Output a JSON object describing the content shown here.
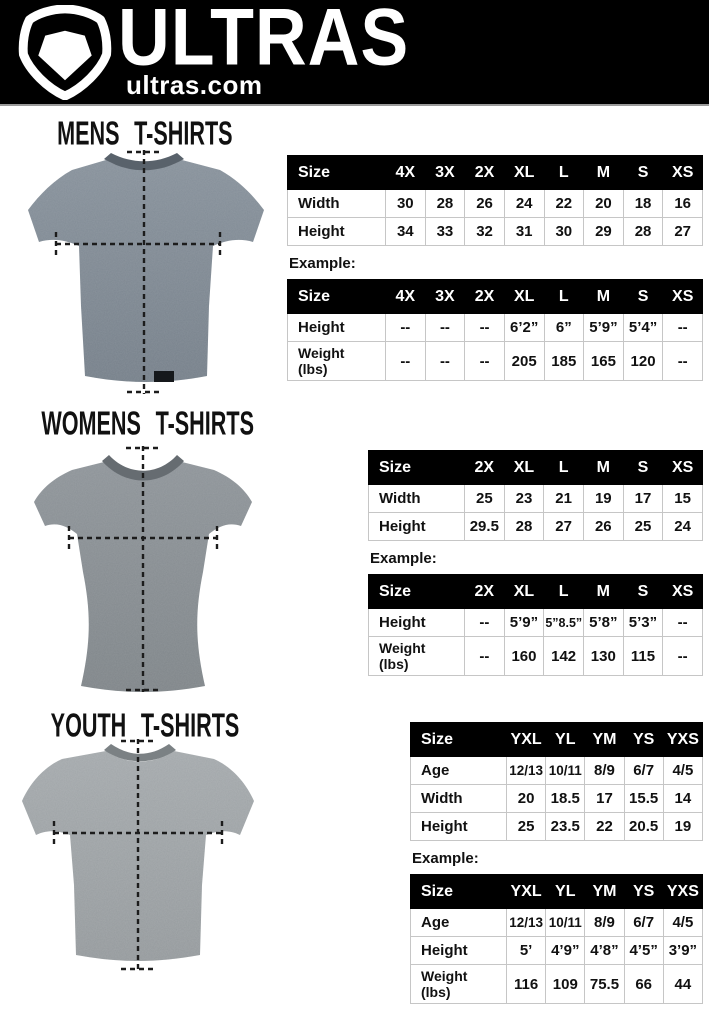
{
  "header": {
    "brand": "ULTRAS",
    "site": "ultras.com",
    "logo_icon": "pentagon-badge-icon"
  },
  "colors": {
    "header_bg": "#000000",
    "table_header_bg": "#000000",
    "table_border": "#c6c6c6",
    "mens_shirt_gray": "#7e8892",
    "womens_shirt_gray": "#878d92",
    "youth_shirt_gray": "#9aa0a3"
  },
  "sections": [
    {
      "title": "MENS T-SHIRTS",
      "example_label": "Example:",
      "size_table": {
        "columns": [
          "Size",
          "4X",
          "3X",
          "2X",
          "XL",
          "L",
          "M",
          "S",
          "XS"
        ],
        "rows": [
          {
            "label": "Width",
            "values": [
              "30",
              "28",
              "26",
              "24",
              "22",
              "20",
              "18",
              "16"
            ]
          },
          {
            "label": "Height",
            "values": [
              "34",
              "33",
              "32",
              "31",
              "30",
              "29",
              "28",
              "27"
            ]
          }
        ]
      },
      "example_table": {
        "columns": [
          "Size",
          "4X",
          "3X",
          "2X",
          "XL",
          "L",
          "M",
          "S",
          "XS"
        ],
        "rows": [
          {
            "label": "Height",
            "values": [
              "--",
              "--",
              "--",
              "6’2”",
              "6”",
              "5’9”",
              "5’4”",
              "--"
            ]
          },
          {
            "label": "Weight\n(lbs)",
            "values": [
              "--",
              "--",
              "--",
              "205",
              "185",
              "165",
              "120",
              "--"
            ]
          }
        ]
      }
    },
    {
      "title": "WOMENS T-SHIRTS",
      "example_label": "Example:",
      "size_table": {
        "columns": [
          "Size",
          "2X",
          "XL",
          "L",
          "M",
          "S",
          "XS"
        ],
        "rows": [
          {
            "label": "Width",
            "values": [
              "25",
              "23",
              "21",
              "19",
              "17",
              "15"
            ]
          },
          {
            "label": "Height",
            "values": [
              "29.5",
              "28",
              "27",
              "26",
              "25",
              "24"
            ]
          }
        ]
      },
      "example_table": {
        "columns": [
          "Size",
          "2X",
          "XL",
          "L",
          "M",
          "S",
          "XS"
        ],
        "rows": [
          {
            "label": "Height",
            "values": [
              "--",
              "5’9”",
              "5”8.5”",
              "5’8”",
              "5’3”",
              "--"
            ]
          },
          {
            "label": "Weight\n(lbs)",
            "values": [
              "--",
              "160",
              "142",
              "130",
              "115",
              "--"
            ]
          }
        ]
      }
    },
    {
      "title": "YOUTH T-SHIRTS",
      "example_label": "Example:",
      "size_table": {
        "columns": [
          "Size",
          "YXL",
          "YL",
          "YM",
          "YS",
          "YXS"
        ],
        "rows": [
          {
            "label": "Age",
            "values": [
              "12/13",
              "10/11",
              "8/9",
              "6/7",
              "4/5"
            ]
          },
          {
            "label": "Width",
            "values": [
              "20",
              "18.5",
              "17",
              "15.5",
              "14"
            ]
          },
          {
            "label": "Height",
            "values": [
              "25",
              "23.5",
              "22",
              "20.5",
              "19"
            ]
          }
        ]
      },
      "example_table": {
        "columns": [
          "Size",
          "YXL",
          "YL",
          "YM",
          "YS",
          "YXS"
        ],
        "rows": [
          {
            "label": "Age",
            "values": [
              "12/13",
              "10/11",
              "8/9",
              "6/7",
              "4/5"
            ]
          },
          {
            "label": "Height",
            "values": [
              "5’",
              "4’9”",
              "4’8”",
              "4’5”",
              "3’9”"
            ]
          },
          {
            "label": "Weight\n(lbs)",
            "values": [
              "116",
              "109",
              "75.5",
              "66",
              "44"
            ]
          }
        ]
      }
    }
  ]
}
